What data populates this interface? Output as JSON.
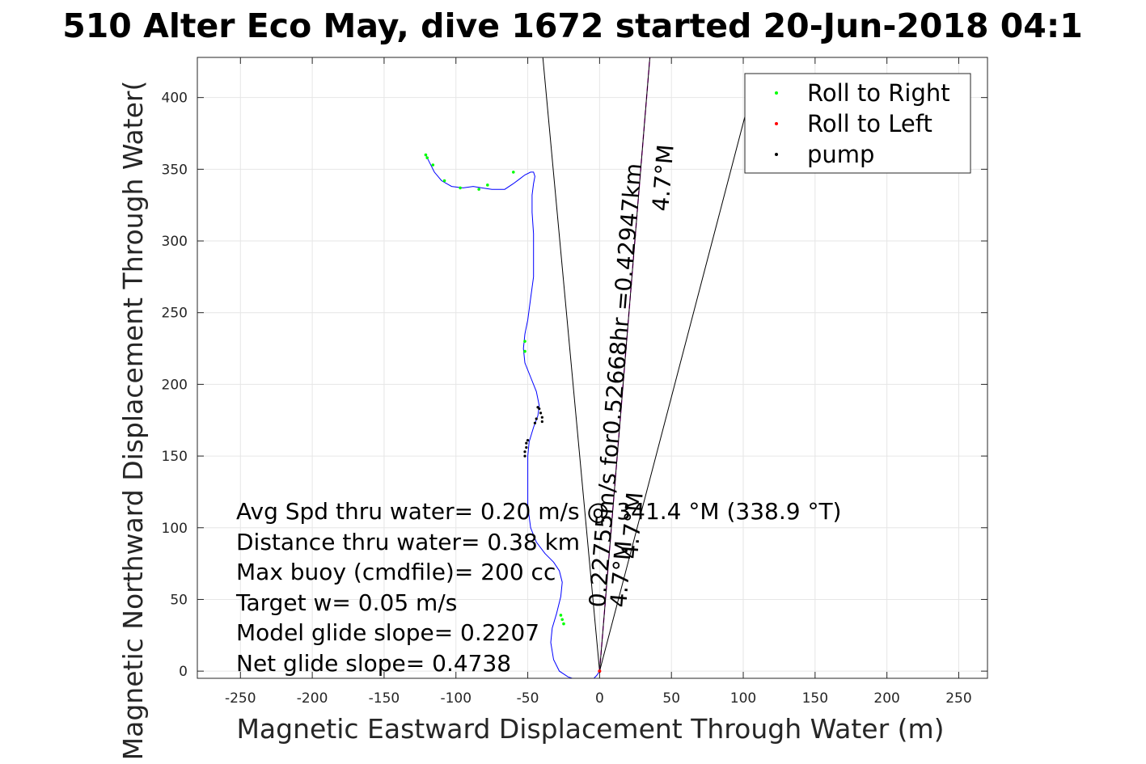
{
  "chart_data": {
    "type": "line",
    "title": "510 Alter Eco May, dive 1672 started 20-Jun-2018 04:1",
    "xlabel": "Magnetic Eastward Displacement Through Water (m)",
    "ylabel": "Magnetic Northward Displacement Through Water(",
    "xlim": [
      -280,
      270
    ],
    "ylim": [
      -5,
      428
    ],
    "xticks": [
      -250,
      -200,
      -150,
      -100,
      -50,
      0,
      50,
      100,
      150,
      200,
      250
    ],
    "yticks": [
      0,
      50,
      100,
      150,
      200,
      250,
      300,
      350,
      400
    ],
    "grid": true,
    "legend": {
      "position": "top-right",
      "entries": [
        "Roll to Right",
        "Roll to Left",
        "pump"
      ]
    },
    "colors": {
      "track": "#0000ff",
      "roll_right": "#00ff00",
      "roll_left": "#ff0000",
      "pump": "#000000",
      "heading": "#ff00ff",
      "axes": "#262626",
      "grid": "#e6e6e6"
    },
    "track": {
      "x": [
        0,
        -2,
        -5,
        -10,
        -16,
        -22,
        -28,
        -32,
        -34,
        -33,
        -30,
        -27,
        -26,
        -28,
        -32,
        -38,
        -44,
        -48,
        -50,
        -50,
        -50,
        -49,
        -46,
        -43,
        -42,
        -44,
        -48,
        -52,
        -53,
        -52,
        -50,
        -48,
        -46,
        -46,
        -46,
        -47,
        -47,
        -46,
        -45,
        -46,
        -48,
        -52,
        -56,
        -60,
        -66,
        -75,
        -82,
        -88,
        -95,
        -103,
        -110,
        -115,
        -118,
        -120,
        -121
      ],
      "y": [
        0,
        -3,
        -6,
        -7,
        -6,
        -4,
        0,
        8,
        20,
        30,
        40,
        52,
        62,
        70,
        76,
        82,
        90,
        100,
        115,
        135,
        150,
        160,
        170,
        178,
        185,
        195,
        205,
        215,
        225,
        235,
        245,
        260,
        275,
        290,
        305,
        320,
        332,
        340,
        345,
        348,
        348,
        346,
        343,
        340,
        336,
        336,
        337,
        338,
        337,
        338,
        342,
        348,
        354,
        358,
        360
      ]
    },
    "roll_right_points": {
      "x": [
        -25,
        -26,
        -27,
        -52,
        -52,
        -60,
        -78,
        -84,
        -97,
        -108,
        -116,
        -120,
        -121
      ],
      "y": [
        33,
        36,
        39,
        223,
        230,
        348,
        339,
        336,
        337,
        342,
        353,
        358,
        360
      ]
    },
    "roll_left_points": {
      "x": [
        0
      ],
      "y": [
        0
      ]
    },
    "pump_points": {
      "x": [
        -52,
        -52,
        -51,
        -51,
        -50,
        -40,
        -40,
        -41,
        -42,
        -43,
        -44,
        -45
      ],
      "y": [
        150,
        153,
        156,
        159,
        161,
        174,
        177,
        180,
        183,
        184,
        176,
        173
      ]
    },
    "lines": [
      {
        "x": [
          0,
          -39.5
        ],
        "y": [
          0,
          428
        ],
        "color": "#000000"
      },
      {
        "x": [
          0,
          35
        ],
        "y": [
          0,
          428
        ],
        "color": "#ff00ff",
        "dash": true
      },
      {
        "x": [
          0,
          35
        ],
        "y": [
          0,
          428
        ],
        "color": "#000000"
      },
      {
        "x": [
          0,
          102
        ],
        "y": [
          0,
          390
        ],
        "color": "#000000"
      }
    ],
    "annotations": [
      "Avg Spd thru water=  0.20 m/s @ 341.4 °M (338.9 °T)",
      "Distance thru water=  0.38 km",
      "Max buoy (cmdfile)= 200 cc",
      "Target w= 0.05 m/s",
      "Model glide slope= 0.2207",
      "Net glide slope= 0.4738"
    ],
    "rotated_labels": [
      "0.22755m/s for0.52668hr =0.42947km",
      "4.7°M",
      "4.7°M",
      "4.7°M"
    ]
  }
}
